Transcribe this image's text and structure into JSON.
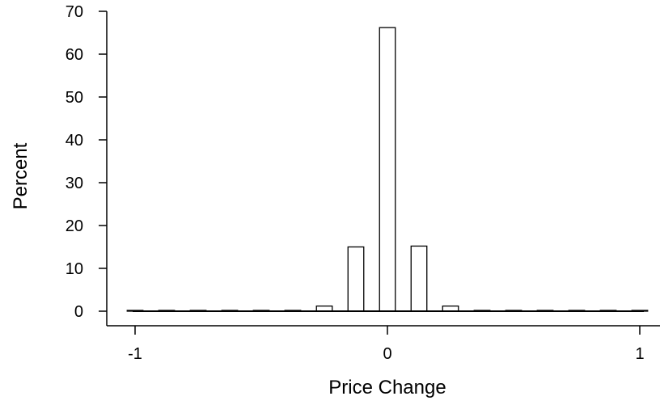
{
  "chart_data": {
    "type": "bar",
    "xlabel": "Price Change",
    "ylabel": "Percent",
    "xlim": [
      -1,
      1
    ],
    "ylim": [
      0,
      70
    ],
    "xticks": [
      "-1",
      "0",
      "1"
    ],
    "yticks": [
      "0",
      "10",
      "20",
      "30",
      "40",
      "50",
      "60",
      "70"
    ],
    "bar_width": 0.0625,
    "x": [
      -1.0,
      -0.875,
      -0.75,
      -0.625,
      -0.5,
      -0.375,
      -0.25,
      -0.125,
      0.0,
      0.125,
      0.25,
      0.375,
      0.5,
      0.625,
      0.75,
      0.875,
      1.0
    ],
    "values": [
      0.1,
      0.1,
      0.1,
      0.1,
      0.1,
      0.1,
      1.2,
      15.0,
      66.2,
      15.2,
      1.2,
      0.1,
      0.1,
      0.1,
      0.1,
      0.1,
      0.1
    ],
    "grid": false,
    "colors": {
      "bar_fill": "#ffffff",
      "bar_stroke": "#000000"
    }
  }
}
